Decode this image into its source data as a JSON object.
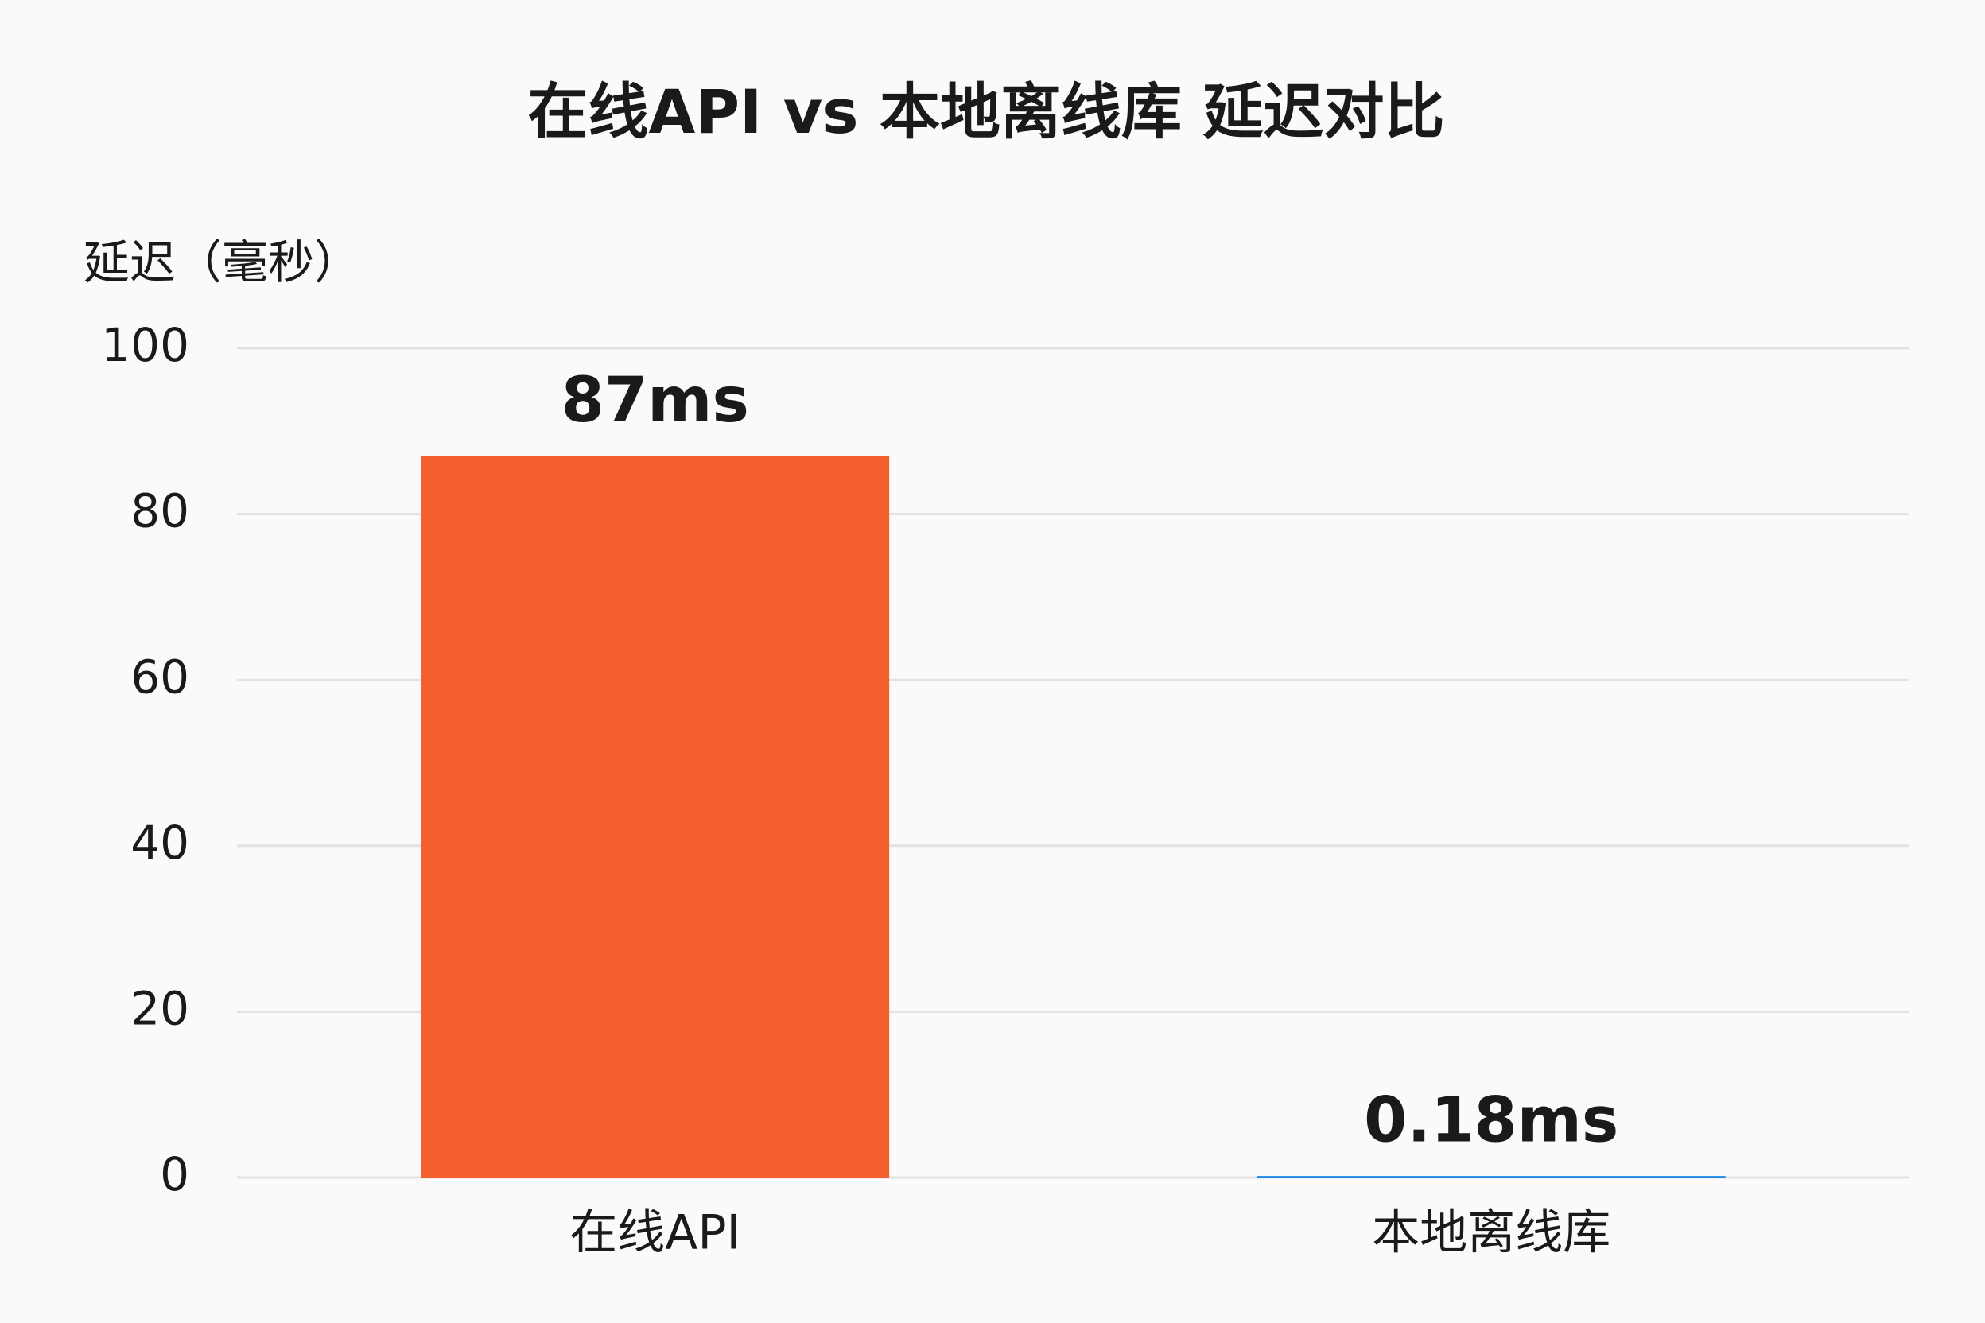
{
  "chart_data": {
    "type": "bar",
    "title": "在线API vs 本地离线库 延迟对比",
    "y_label": "延迟（毫秒）",
    "categories": [
      "在线API",
      "本地离线库"
    ],
    "values": [
      87,
      0.18
    ],
    "value_labels": [
      "87ms",
      "0.18ms"
    ],
    "colors": [
      "#f65f30",
      "#1e88e5"
    ],
    "ylim": [
      0,
      100
    ],
    "yticks": [
      0,
      20,
      40,
      60,
      80,
      100
    ],
    "grid": true
  }
}
